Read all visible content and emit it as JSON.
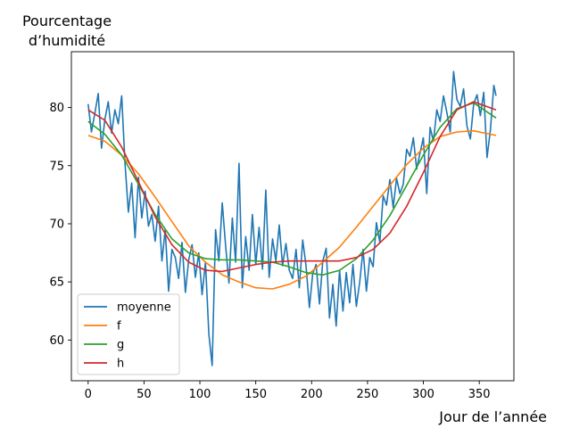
{
  "chart_data": {
    "type": "line",
    "ylabel_lines": [
      "Pourcentage",
      "d’humidité"
    ],
    "xlabel": "Jour de l’année",
    "xlim": [
      -15,
      381
    ],
    "ylim": [
      56.5,
      84.8
    ],
    "xticks": [
      0,
      50,
      100,
      150,
      200,
      250,
      300,
      350
    ],
    "yticks": [
      60,
      65,
      70,
      75,
      80
    ],
    "legend_position": "lower-left",
    "grid": false,
    "series": [
      {
        "name": "moyenne",
        "color": "#1f77b4",
        "x": [
          0,
          3,
          6,
          9,
          12,
          15,
          18,
          21,
          24,
          27,
          30,
          33,
          36,
          39,
          42,
          45,
          48,
          51,
          54,
          57,
          60,
          63,
          66,
          69,
          72,
          75,
          78,
          81,
          84,
          87,
          90,
          93,
          96,
          99,
          102,
          105,
          108,
          111,
          114,
          117,
          120,
          123,
          126,
          129,
          132,
          135,
          138,
          141,
          144,
          147,
          150,
          153,
          156,
          159,
          162,
          165,
          168,
          171,
          174,
          177,
          180,
          183,
          186,
          189,
          192,
          195,
          198,
          201,
          204,
          207,
          210,
          213,
          216,
          219,
          222,
          225,
          228,
          231,
          234,
          237,
          240,
          243,
          246,
          249,
          252,
          255,
          258,
          261,
          264,
          267,
          270,
          273,
          276,
          279,
          282,
          285,
          288,
          291,
          294,
          297,
          300,
          303,
          306,
          309,
          312,
          315,
          318,
          321,
          324,
          327,
          330,
          333,
          336,
          339,
          342,
          345,
          348,
          351,
          354,
          357,
          360,
          363,
          365
        ],
        "y": [
          80.3,
          77.9,
          79.5,
          81.2,
          76.5,
          79.0,
          80.5,
          77.8,
          79.8,
          78.6,
          81.0,
          75.2,
          71.0,
          73.5,
          68.8,
          74.0,
          70.5,
          72.8,
          69.8,
          70.8,
          68.5,
          71.5,
          66.8,
          69.5,
          64.2,
          67.8,
          67.1,
          65.3,
          68.4,
          64.1,
          66.9,
          68.2,
          65.4,
          67.5,
          63.9,
          66.7,
          60.5,
          57.8,
          69.5,
          66.8,
          71.8,
          68.2,
          64.9,
          70.5,
          66.7,
          75.2,
          64.5,
          68.9,
          66.0,
          70.8,
          66.5,
          69.7,
          66.1,
          72.9,
          65.4,
          68.7,
          66.8,
          69.9,
          66.4,
          68.3,
          66.0,
          65.3,
          67.8,
          64.5,
          68.6,
          66.4,
          62.8,
          65.7,
          66.5,
          63.1,
          66.8,
          67.9,
          61.9,
          64.8,
          61.2,
          66.0,
          62.5,
          65.8,
          63.2,
          66.5,
          62.9,
          65.0,
          67.8,
          64.2,
          67.1,
          66.3,
          70.1,
          68.4,
          72.4,
          71.6,
          73.8,
          71.4,
          73.9,
          72.6,
          73.4,
          76.4,
          75.8,
          77.4,
          74.7,
          76.1,
          77.4,
          72.6,
          78.3,
          77.1,
          79.8,
          78.8,
          81.0,
          79.6,
          77.9,
          83.1,
          80.7,
          80.1,
          81.6,
          78.4,
          77.3,
          80.3,
          81.1,
          79.3,
          81.3,
          75.7,
          78.1,
          81.9,
          81.0
        ]
      },
      {
        "name": "f",
        "color": "#ff7f0e",
        "x": [
          0,
          15,
          30,
          45,
          60,
          75,
          90,
          105,
          120,
          135,
          150,
          165,
          180,
          195,
          210,
          225,
          240,
          255,
          270,
          285,
          300,
          315,
          330,
          345,
          365
        ],
        "y": [
          77.6,
          77.1,
          75.9,
          74.3,
          72.3,
          70.2,
          68.1,
          66.7,
          65.6,
          65.0,
          64.5,
          64.4,
          64.8,
          65.5,
          66.7,
          68.0,
          69.7,
          71.5,
          73.3,
          75.1,
          76.5,
          77.5,
          77.9,
          78.0,
          77.6
        ]
      },
      {
        "name": "g",
        "color": "#2ca02c",
        "x": [
          0,
          15,
          30,
          45,
          60,
          75,
          90,
          105,
          120,
          135,
          150,
          165,
          180,
          195,
          210,
          225,
          240,
          255,
          270,
          285,
          300,
          315,
          330,
          345,
          365
        ],
        "y": [
          78.8,
          77.7,
          75.9,
          73.4,
          70.8,
          68.7,
          67.5,
          67.0,
          66.9,
          66.9,
          66.8,
          66.7,
          66.3,
          65.8,
          65.6,
          66.0,
          67.0,
          68.6,
          70.7,
          73.3,
          75.9,
          78.3,
          79.9,
          80.4,
          79.1
        ]
      },
      {
        "name": "h",
        "color": "#d62728",
        "x": [
          0,
          15,
          30,
          45,
          60,
          75,
          90,
          105,
          120,
          135,
          150,
          165,
          180,
          195,
          210,
          225,
          240,
          255,
          270,
          285,
          300,
          315,
          330,
          345,
          365
        ],
        "y": [
          79.8,
          78.9,
          76.6,
          73.6,
          70.6,
          68.2,
          66.7,
          66.0,
          65.9,
          66.2,
          66.5,
          66.7,
          66.8,
          66.8,
          66.8,
          66.8,
          67.1,
          67.8,
          69.2,
          71.5,
          74.4,
          77.5,
          79.8,
          80.5,
          79.8
        ]
      }
    ]
  }
}
